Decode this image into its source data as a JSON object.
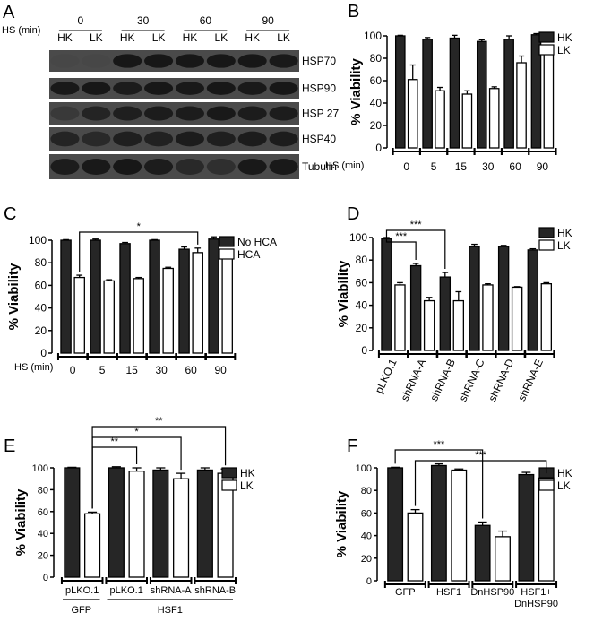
{
  "colors": {
    "hk": "#262626",
    "lk": "#ffffff",
    "axis": "#000000",
    "blot_bg": "#4a4a4a",
    "band": "#141414"
  },
  "chart_data": [
    {
      "panel": "A",
      "type": "western-blot",
      "hs_label": "HS (min)",
      "time_labels": [
        "0",
        "30",
        "60",
        "90"
      ],
      "lane_labels": [
        "HK",
        "LK"
      ],
      "rows": [
        "HSP70",
        "HSP90",
        "HSP 27",
        "HSP40",
        "Tubulin"
      ],
      "band_intensity": [
        [
          0.05,
          0.05,
          0.95,
          0.95,
          0.95,
          0.95,
          0.95,
          0.9
        ],
        [
          0.9,
          0.95,
          0.85,
          0.95,
          0.9,
          0.95,
          0.9,
          0.95
        ],
        [
          0.3,
          0.7,
          0.8,
          0.85,
          0.85,
          0.9,
          0.85,
          0.85
        ],
        [
          0.7,
          0.6,
          0.8,
          0.75,
          0.85,
          0.8,
          0.85,
          0.85
        ],
        [
          0.85,
          0.9,
          0.95,
          0.85,
          0.6,
          0.5,
          0.9,
          0.9
        ]
      ]
    },
    {
      "panel": "B",
      "type": "bar",
      "ylabel": "% Viability",
      "xlabel": "HS (min)",
      "categories": [
        "0",
        "5",
        "15",
        "30",
        "60",
        "90"
      ],
      "ylim": [
        0,
        100
      ],
      "yticks": [
        0,
        20,
        40,
        60,
        80,
        100
      ],
      "legend_position": "top-right",
      "series": [
        {
          "name": "HK",
          "values": [
            100,
            97,
            98,
            95,
            97,
            101
          ],
          "errors": [
            0.5,
            1.5,
            2.5,
            1.5,
            3,
            1
          ]
        },
        {
          "name": "LK",
          "values": [
            61,
            51,
            48,
            53,
            76,
            84
          ],
          "errors": [
            13,
            3,
            3,
            1.5,
            6,
            4
          ]
        }
      ],
      "significance": []
    },
    {
      "panel": "C",
      "type": "bar",
      "ylabel": "% Viability",
      "xlabel": "HS (min)",
      "categories": [
        "0",
        "5",
        "15",
        "30",
        "60",
        "90"
      ],
      "ylim": [
        0,
        100
      ],
      "yticks": [
        0,
        20,
        40,
        60,
        80,
        100
      ],
      "legend_position": "top-right",
      "series": [
        {
          "name": "No HCA",
          "values": [
            100,
            100,
            97,
            100,
            92,
            101
          ],
          "errors": [
            0.5,
            1,
            1,
            0.5,
            2,
            2
          ]
        },
        {
          "name": "HCA",
          "values": [
            67,
            64,
            66,
            75,
            89,
            85
          ],
          "errors": [
            2,
            1,
            1,
            1,
            4,
            0.5
          ]
        }
      ],
      "significance": [
        {
          "from_group": 0,
          "from_series": 1,
          "to_group": 4,
          "to_series": 1,
          "label": "*"
        }
      ]
    },
    {
      "panel": "D",
      "type": "bar",
      "ylabel": "% Viability",
      "xlabel": "",
      "categories": [
        "pLKO.1",
        "shRNA-A",
        "shRNA-B",
        "shRNA-C",
        "shRNA-D",
        "shRNA-E"
      ],
      "ylim": [
        0,
        100
      ],
      "yticks": [
        0,
        20,
        40,
        60,
        80,
        100
      ],
      "legend_position": "top-right",
      "series": [
        {
          "name": "HK",
          "values": [
            99,
            75,
            65,
            92,
            92,
            89
          ],
          "errors": [
            1,
            2,
            4,
            2,
            1,
            1
          ]
        },
        {
          "name": "LK",
          "values": [
            58,
            44,
            44,
            58,
            56,
            59
          ],
          "errors": [
            2,
            3,
            8,
            1,
            0.5,
            1
          ]
        }
      ],
      "significance": [
        {
          "from_group": 0,
          "from_series": 0,
          "to_group": 1,
          "to_series": 0,
          "label": "***"
        },
        {
          "from_group": 0,
          "from_series": 0,
          "to_group": 2,
          "to_series": 0,
          "label": "***"
        }
      ]
    },
    {
      "panel": "E",
      "type": "bar",
      "ylabel": "% Viability",
      "xlabel": "",
      "categories": [
        "pLKO.1",
        "pLKO.1",
        "shRNA-A",
        "shRNA-B"
      ],
      "group_labels": [
        {
          "label": "GFP",
          "from": 0,
          "to": 0
        },
        {
          "label": "HSF1",
          "from": 1,
          "to": 3
        }
      ],
      "ylim": [
        0,
        100
      ],
      "yticks": [
        0,
        20,
        40,
        60,
        80,
        100
      ],
      "legend_position": "top-right",
      "series": [
        {
          "name": "HK",
          "values": [
            100,
            100,
            98,
            98
          ],
          "errors": [
            0.5,
            1,
            2,
            2
          ]
        },
        {
          "name": "LK",
          "values": [
            58,
            97,
            90,
            95
          ],
          "errors": [
            1.5,
            3,
            5,
            4
          ]
        }
      ],
      "significance": [
        {
          "from_group": 0,
          "from_series": 1,
          "to_group": 1,
          "to_series": 1,
          "label": "**"
        },
        {
          "from_group": 0,
          "from_series": 1,
          "to_group": 2,
          "to_series": 1,
          "label": "*"
        },
        {
          "from_group": 0,
          "from_series": 1,
          "to_group": 3,
          "to_series": 1,
          "label": "**"
        }
      ]
    },
    {
      "panel": "F",
      "type": "bar",
      "ylabel": "% Viability",
      "xlabel": "",
      "categories": [
        "GFP",
        "HSF1",
        "DnHSP90",
        "HSF1+\nDnHSP90"
      ],
      "ylim": [
        0,
        100
      ],
      "yticks": [
        0,
        20,
        40,
        60,
        80,
        100
      ],
      "legend_position": "top-right",
      "series": [
        {
          "name": "HK",
          "values": [
            100,
            102,
            49,
            94
          ],
          "errors": [
            0.5,
            1.5,
            3,
            2
          ]
        },
        {
          "name": "LK",
          "values": [
            60,
            98,
            39,
            91
          ],
          "errors": [
            3,
            1,
            5,
            1
          ]
        }
      ],
      "significance": [
        {
          "from_group": 0,
          "from_series": 0,
          "to_group": 2,
          "to_series": 0,
          "label": "***"
        },
        {
          "from_group": 0,
          "from_series": 1,
          "to_group": 3,
          "to_series": 1,
          "label": "***"
        }
      ]
    }
  ],
  "panel_letters": [
    "A",
    "B",
    "C",
    "D",
    "E",
    "F"
  ]
}
